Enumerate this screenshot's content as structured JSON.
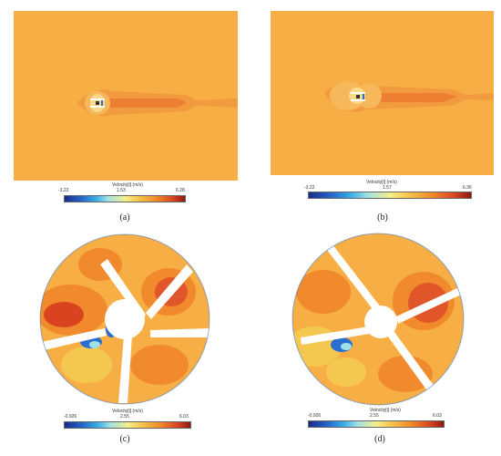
{
  "panels": [
    {
      "id": "a",
      "label": "(a)",
      "colorbar": {
        "title": "Velocity[i] (m/s)",
        "min": "-3.22",
        "mid": "1.53",
        "max": "6.28"
      }
    },
    {
      "id": "b",
      "label": "(b)",
      "colorbar": {
        "title": "Velocity[i] (m/s)",
        "min": "-3.22",
        "mid": "1.57",
        "max": "6.36"
      }
    },
    {
      "id": "c",
      "label": "(c)",
      "colorbar": {
        "title": "Velocity[i] (m/s)",
        "min": "-0.926",
        "mid": "2.55",
        "max": "6.03"
      }
    },
    {
      "id": "d",
      "label": "(d)",
      "colorbar": {
        "title": "Velocity[i] (m/s)",
        "min": "-0.926",
        "mid": "2.55",
        "max": "6.03"
      }
    }
  ],
  "colors": {
    "background_flow": "#F7AE45",
    "wake": "#F08A3A",
    "wake_core": "#E8752E",
    "low_velocity": "#2A6FD0",
    "high_velocity": "#D9431F"
  }
}
